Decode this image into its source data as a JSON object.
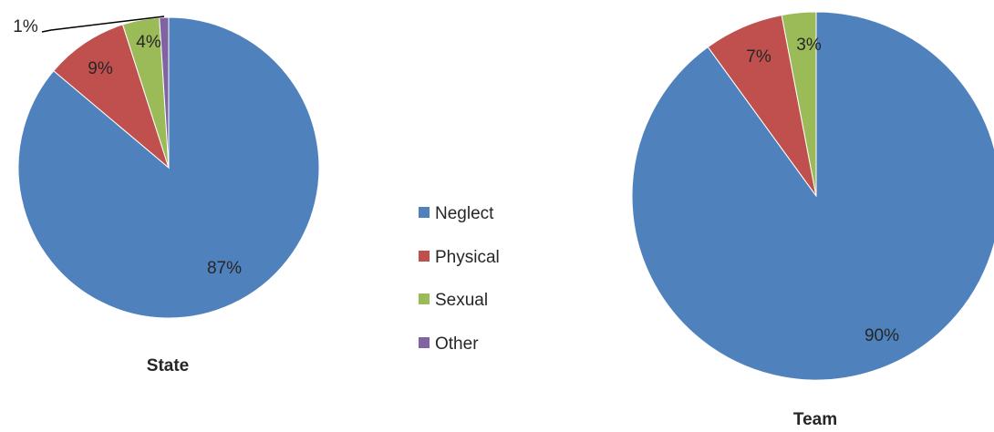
{
  "colors": {
    "Neglect": "#4f81bd",
    "Physical": "#c0504d",
    "Sexual": "#9bbb59",
    "Other": "#8064a2"
  },
  "legend": {
    "placement": "center",
    "items": [
      "Neglect",
      "Physical",
      "Sexual",
      "Other"
    ]
  },
  "chart_data": [
    {
      "type": "pie",
      "title": "State",
      "categories": [
        "Neglect",
        "Physical",
        "Sexual",
        "Other"
      ],
      "values": [
        87,
        9,
        4,
        1
      ],
      "labels": [
        "87%",
        "9%",
        "4%",
        "1%"
      ]
    },
    {
      "type": "pie",
      "title": "Team",
      "categories": [
        "Neglect",
        "Physical",
        "Sexual"
      ],
      "values": [
        90,
        7,
        3
      ],
      "labels": [
        "90%",
        "7%",
        "3%"
      ]
    }
  ]
}
